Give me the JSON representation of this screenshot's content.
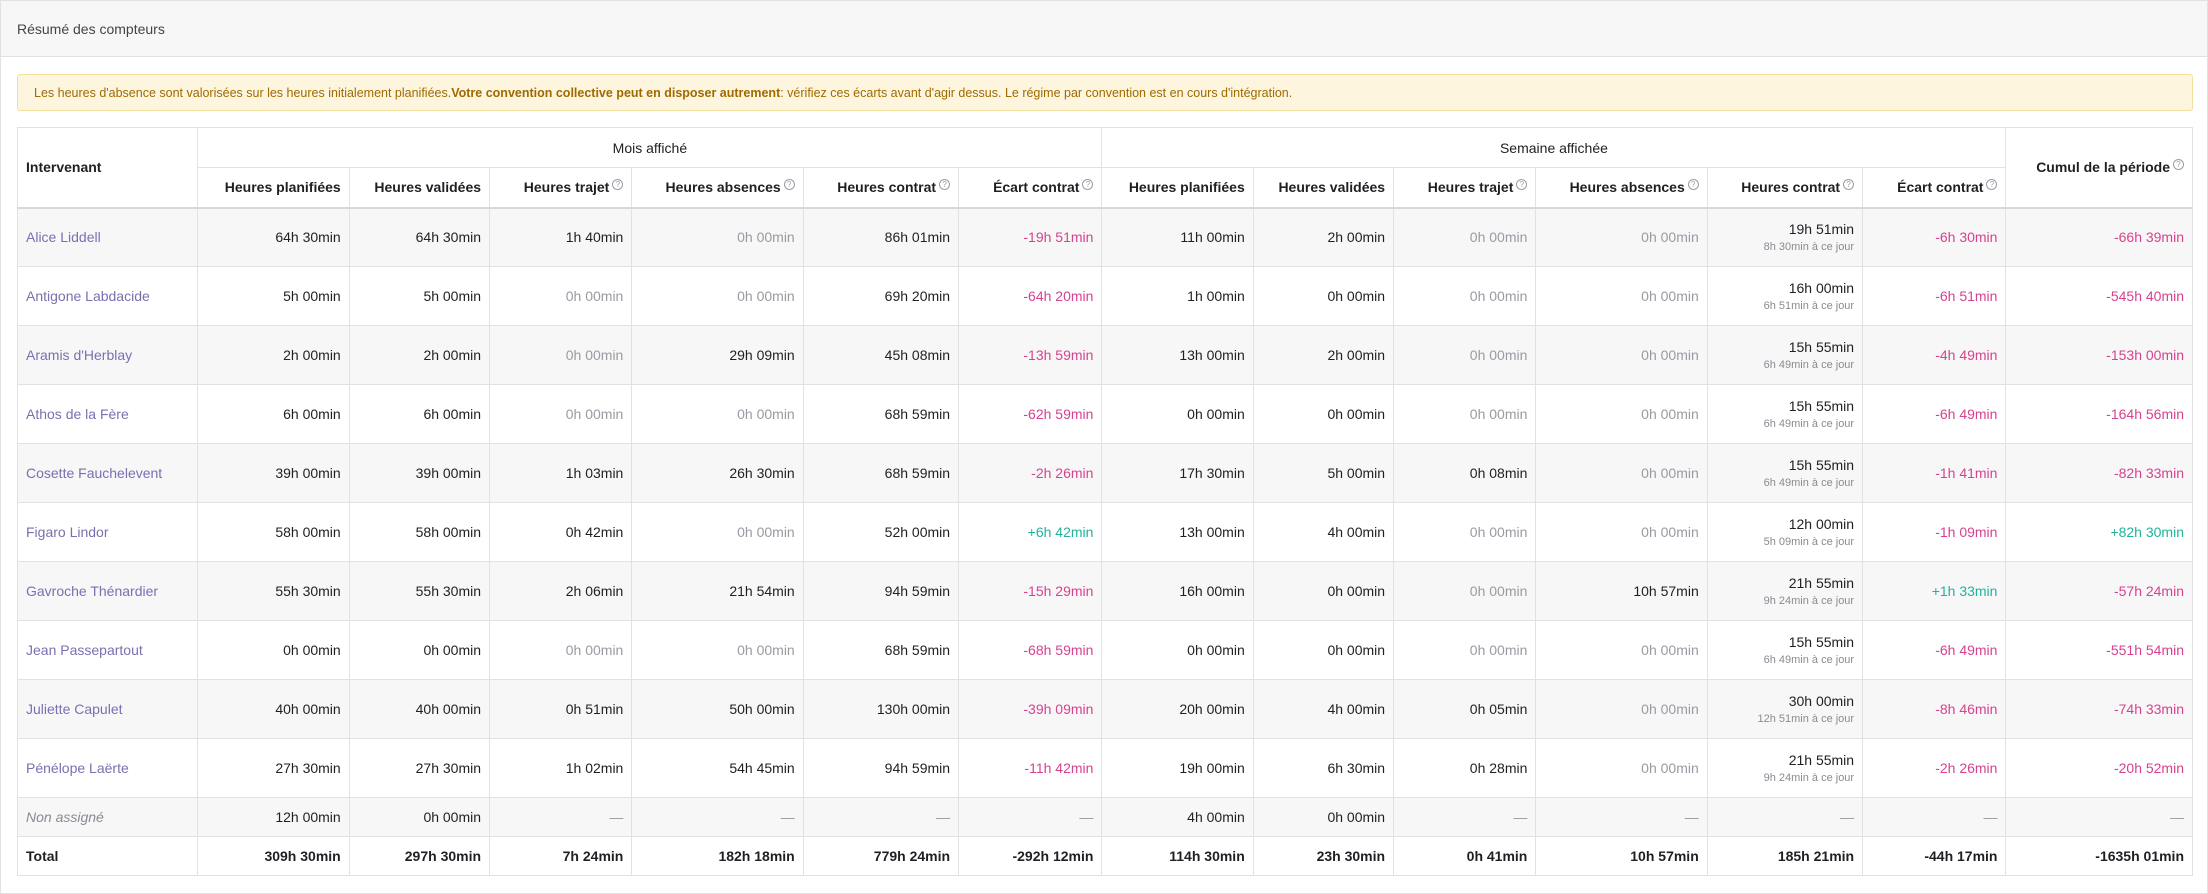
{
  "panel": {
    "title": "Résumé des compteurs"
  },
  "alert": {
    "part1": "Les heures d'absence sont valorisées sur les heures initialement planifiées. ",
    "part2": "Votre convention collective peut en disposer autrement",
    "part3": " : vérifiez ces écarts avant d'agir dessus. Le régime par convention est en cours d'intégration."
  },
  "table": {
    "name_header": "Intervenant",
    "group_month": "Mois affiché",
    "group_week": "Semaine affichée",
    "cumul_header": "Cumul de la période",
    "columns": [
      {
        "label": "Heures planifiées",
        "help": false
      },
      {
        "label": "Heures validées",
        "help": false
      },
      {
        "label": "Heures trajet",
        "help": true
      },
      {
        "label": "Heures absences",
        "help": true
      },
      {
        "label": "Heures contrat",
        "help": true
      },
      {
        "label": "Écart contrat",
        "help": true
      },
      {
        "label": "Heures planifiées",
        "help": false
      },
      {
        "label": "Heures validées",
        "help": false
      },
      {
        "label": "Heures trajet",
        "help": true
      },
      {
        "label": "Heures absences",
        "help": true
      },
      {
        "label": "Heures contrat",
        "help": true
      },
      {
        "label": "Écart contrat",
        "help": true
      }
    ],
    "rows": [
      {
        "name": "Alice Liddell",
        "cells": [
          "64h 30min",
          "64h 30min",
          "1h 40min",
          "0h 00min",
          "86h 01min",
          "-19h 51min",
          "11h 00min",
          "2h 00min",
          "0h 00min",
          "0h 00min",
          "19h 51min",
          "-6h 30min",
          "-66h 39min"
        ],
        "sub": "8h 30min à ce jour"
      },
      {
        "name": "Antigone Labdacide",
        "cells": [
          "5h 00min",
          "5h 00min",
          "0h 00min",
          "0h 00min",
          "69h 20min",
          "-64h 20min",
          "1h 00min",
          "0h 00min",
          "0h 00min",
          "0h 00min",
          "16h 00min",
          "-6h 51min",
          "-545h 40min"
        ],
        "sub": "6h 51min à ce jour"
      },
      {
        "name": "Aramis d'Herblay",
        "cells": [
          "2h 00min",
          "2h 00min",
          "0h 00min",
          "29h 09min",
          "45h 08min",
          "-13h 59min",
          "13h 00min",
          "2h 00min",
          "0h 00min",
          "0h 00min",
          "15h 55min",
          "-4h 49min",
          "-153h 00min"
        ],
        "sub": "6h 49min à ce jour"
      },
      {
        "name": "Athos de la Fère",
        "cells": [
          "6h 00min",
          "6h 00min",
          "0h 00min",
          "0h 00min",
          "68h 59min",
          "-62h 59min",
          "0h 00min",
          "0h 00min",
          "0h 00min",
          "0h 00min",
          "15h 55min",
          "-6h 49min",
          "-164h 56min"
        ],
        "sub": "6h 49min à ce jour"
      },
      {
        "name": "Cosette Fauchelevent",
        "cells": [
          "39h 00min",
          "39h 00min",
          "1h 03min",
          "26h 30min",
          "68h 59min",
          "-2h 26min",
          "17h 30min",
          "5h 00min",
          "0h 08min",
          "0h 00min",
          "15h 55min",
          "-1h 41min",
          "-82h 33min"
        ],
        "sub": "6h 49min à ce jour"
      },
      {
        "name": "Figaro Lindor",
        "cells": [
          "58h 00min",
          "58h 00min",
          "0h 42min",
          "0h 00min",
          "52h 00min",
          "+6h 42min",
          "13h 00min",
          "4h 00min",
          "0h 00min",
          "0h 00min",
          "12h 00min",
          "-1h 09min",
          "+82h 30min"
        ],
        "sub": "5h 09min à ce jour"
      },
      {
        "name": "Gavroche Thénardier",
        "cells": [
          "55h 30min",
          "55h 30min",
          "2h 06min",
          "21h 54min",
          "94h 59min",
          "-15h 29min",
          "16h 00min",
          "0h 00min",
          "0h 00min",
          "10h 57min",
          "21h 55min",
          "+1h 33min",
          "-57h 24min"
        ],
        "sub": "9h 24min à ce jour"
      },
      {
        "name": "Jean Passepartout",
        "cells": [
          "0h 00min",
          "0h 00min",
          "0h 00min",
          "0h 00min",
          "68h 59min",
          "-68h 59min",
          "0h 00min",
          "0h 00min",
          "0h 00min",
          "0h 00min",
          "15h 55min",
          "-6h 49min",
          "-551h 54min"
        ],
        "sub": "6h 49min à ce jour"
      },
      {
        "name": "Juliette Capulet",
        "cells": [
          "40h 00min",
          "40h 00min",
          "0h 51min",
          "50h 00min",
          "130h 00min",
          "-39h 09min",
          "20h 00min",
          "4h 00min",
          "0h 05min",
          "0h 00min",
          "30h 00min",
          "-8h 46min",
          "-74h 33min"
        ],
        "sub": "12h 51min à ce jour"
      },
      {
        "name": "Pénélope Laërte",
        "cells": [
          "27h 30min",
          "27h 30min",
          "1h 02min",
          "54h 45min",
          "94h 59min",
          "-11h 42min",
          "19h 00min",
          "6h 30min",
          "0h 28min",
          "0h 00min",
          "21h 55min",
          "-2h 26min",
          "-20h 52min"
        ],
        "sub": "9h 24min à ce jour"
      }
    ],
    "unassigned": {
      "name": "Non assigné",
      "cells": [
        "12h 00min",
        "0h 00min",
        "—",
        "—",
        "—",
        "—",
        "4h 00min",
        "0h 00min",
        "—",
        "—",
        "—",
        "—",
        "—"
      ]
    },
    "total": {
      "name": "Total",
      "cells": [
        "309h 30min",
        "297h 30min",
        "7h 24min",
        "182h 18min",
        "779h 24min",
        "-292h 12min",
        "114h 30min",
        "23h 30min",
        "0h 41min",
        "10h 57min",
        "185h 21min",
        "-44h 17min",
        "-1635h 01min"
      ]
    },
    "colors": {
      "negative": "#d6428f",
      "positive": "#21b39a",
      "name_link": "#7b6fb0",
      "alert_text": "#a06a00"
    }
  }
}
